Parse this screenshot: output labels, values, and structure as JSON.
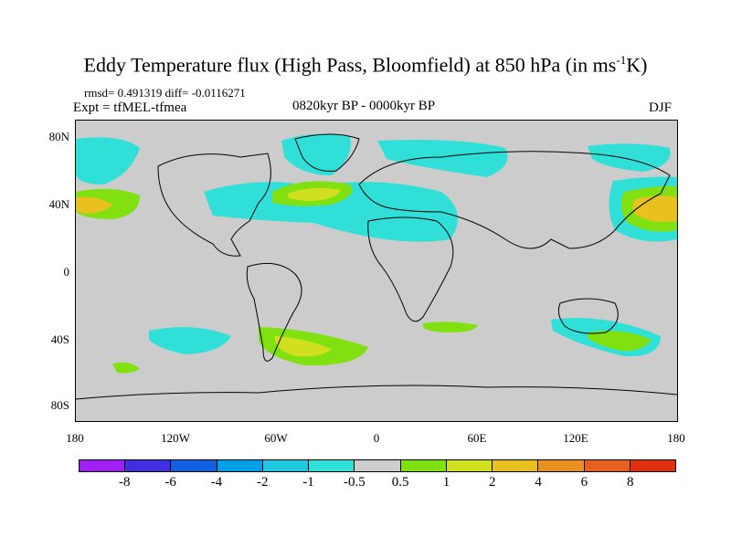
{
  "title": {
    "main": "Eddy Temperature flux (High Pass, Bloomfield) at 850 hPa (in ms",
    "sup": "-1",
    "end": "K)"
  },
  "stats_text": "rmsd= 0.491319 diff= -0.0116271",
  "experiment": "Expt = tfMEL-tfmea",
  "period": "0820kyr BP - 0000kyr BP",
  "season": "DJF",
  "lat_labels": [
    "80N",
    "40N",
    "0",
    "40S",
    "80S"
  ],
  "lon_labels": [
    "180",
    "120W",
    "60W",
    "0",
    "60E",
    "120E",
    "180"
  ],
  "colorbar": {
    "labels": [
      "-8",
      "-6",
      "-4",
      "-2",
      "-1",
      "-0.5",
      "0.5",
      "1",
      "2",
      "4",
      "6",
      "8"
    ],
    "colors": [
      "#a020f0",
      "#4030e0",
      "#1060e0",
      "#00a0e8",
      "#20c8e0",
      "#30e0d8",
      "#cccccc",
      "#80e010",
      "#d0e020",
      "#e8c020",
      "#e89020",
      "#e86020",
      "#e03010"
    ]
  },
  "map_colors": {
    "land": "#cccccc",
    "coast": "#000000"
  }
}
